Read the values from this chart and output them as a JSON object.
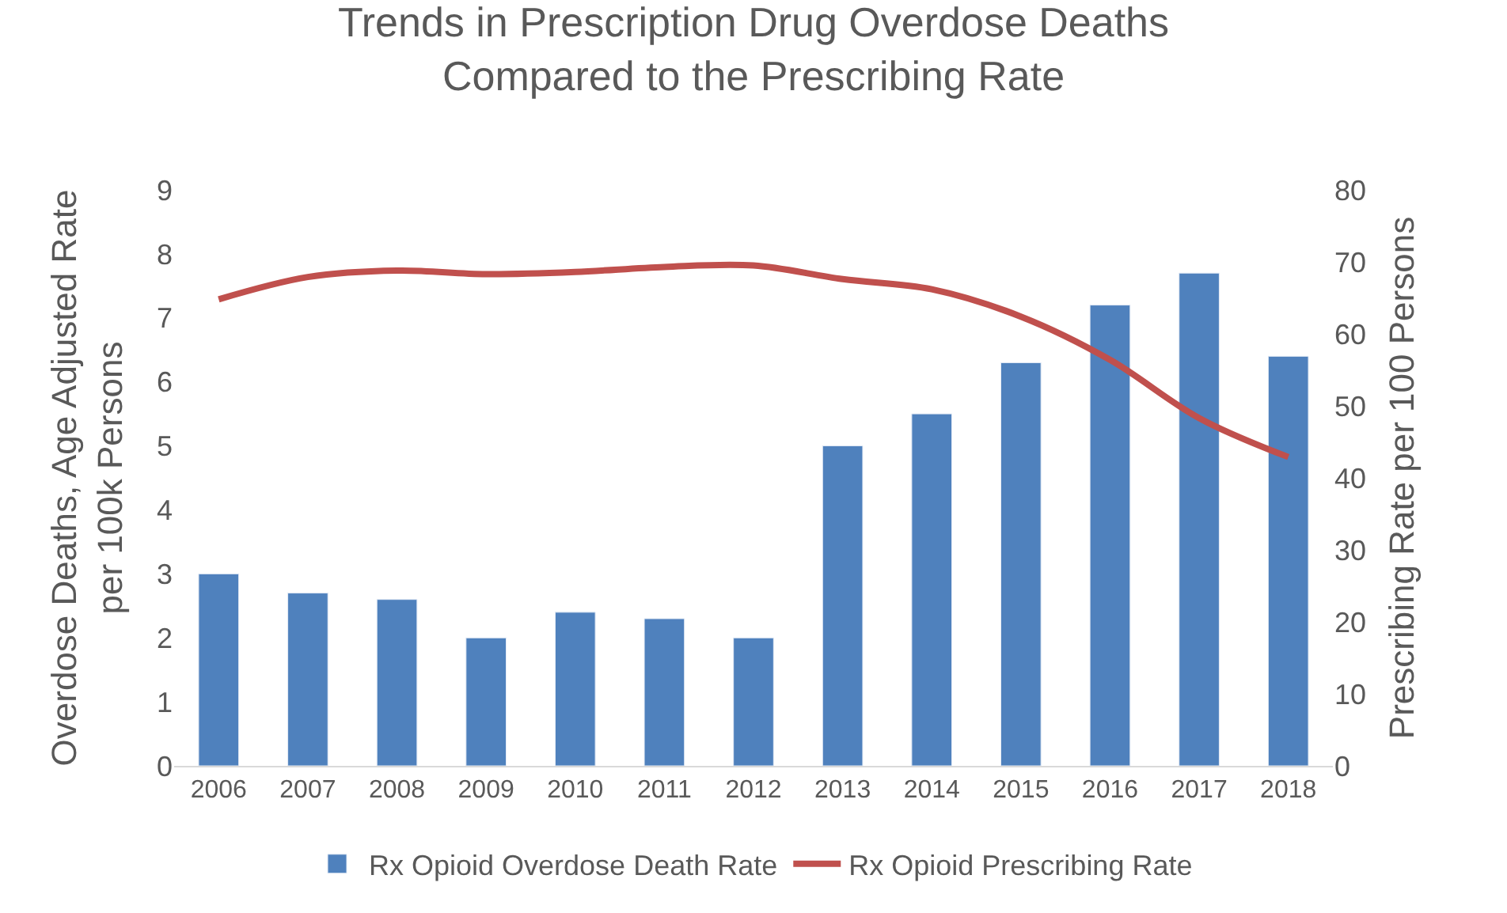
{
  "chart_data": {
    "type": "bar",
    "title": "Trends in Prescription Drug Overdose Deaths\nCompared to the Prescribing Rate",
    "ylabel": "Overdose Deaths, Age Adjusted Rate\nper 100k Persons",
    "y2label": "Prescribing Rate per 100 Persons",
    "categories": [
      "2006",
      "2007",
      "2008",
      "2009",
      "2010",
      "2011",
      "2012",
      "2013",
      "2014",
      "2015",
      "2016",
      "2017",
      "2018"
    ],
    "series": [
      {
        "name": "Rx Opioid Overdose Death Rate",
        "color": "#4f81bd",
        "values": [
          3.0,
          2.7,
          2.6,
          2.0,
          2.4,
          2.3,
          2.0,
          5.0,
          5.5,
          6.3,
          7.2,
          7.7,
          6.4
        ]
      },
      {
        "name": "Rx Opioid Prescribing Rate",
        "type": "line",
        "axis": "y2",
        "color": "#c0504d",
        "values": [
          64.8,
          67.9,
          68.8,
          68.3,
          68.6,
          69.3,
          69.5,
          67.6,
          66.2,
          62.4,
          56.4,
          48.3,
          42.9
        ]
      }
    ],
    "ylim": [
      0,
      9
    ],
    "yticks": [
      0,
      1,
      2,
      3,
      4,
      5,
      6,
      7,
      8,
      9
    ],
    "y2lim": [
      0,
      80
    ],
    "y2ticks": [
      0,
      10,
      20,
      30,
      40,
      50,
      60,
      70,
      80
    ],
    "legend": "bottom",
    "marker": "none",
    "line_style": "solid"
  }
}
